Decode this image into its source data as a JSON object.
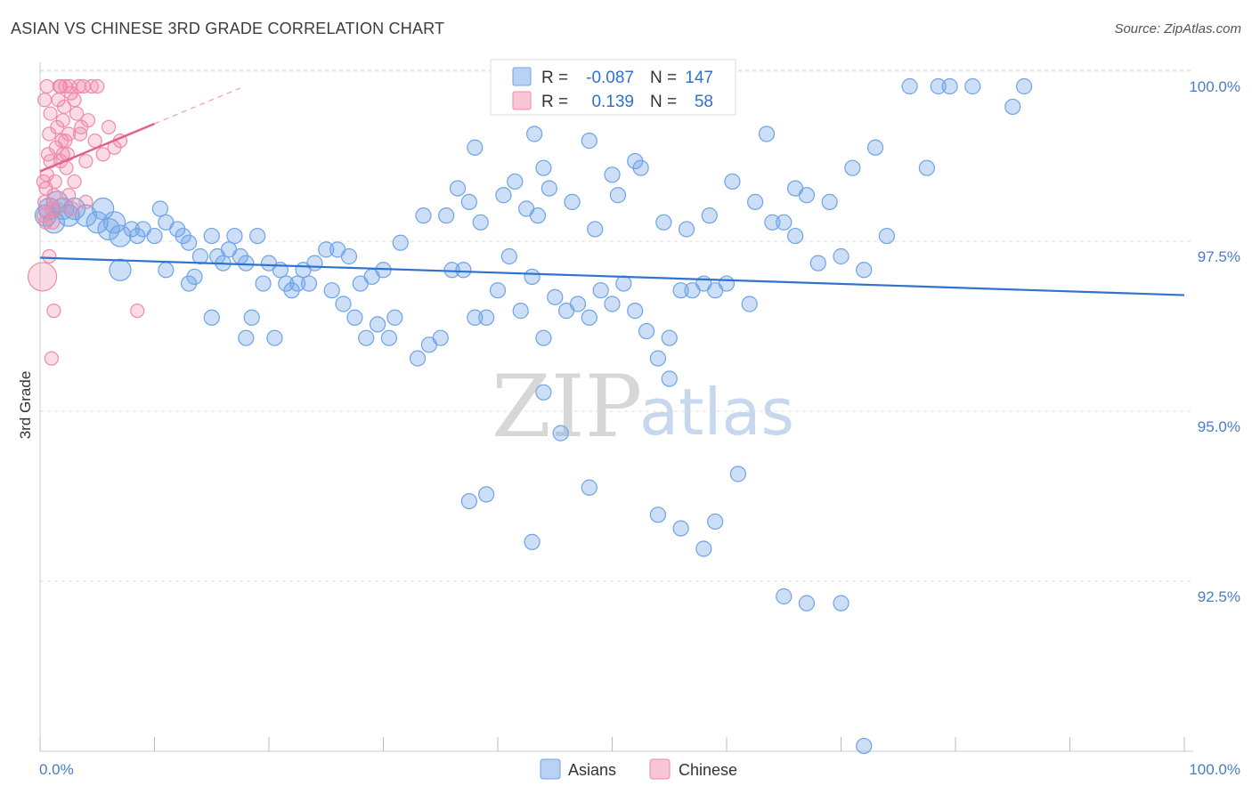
{
  "header": {
    "title": "ASIAN VS CHINESE 3RD GRADE CORRELATION CHART",
    "source": "Source: ZipAtlas.com"
  },
  "watermark": {
    "part1": "ZIP",
    "part2": "atlas"
  },
  "stats_legend": {
    "rows": [
      {
        "r_label": "R =",
        "r_value": "-0.087",
        "n_label": "N =",
        "n_value": "147",
        "color": "#6ea3e8"
      },
      {
        "r_label": "R =",
        "r_value": "0.139",
        "n_label": "N =",
        "n_value": "58",
        "color": "#f08aa8"
      }
    ]
  },
  "chart_data": {
    "type": "scatter",
    "title": "ASIAN VS CHINESE 3RD GRADE CORRELATION CHART",
    "xlabel": "",
    "ylabel": "3rd Grade",
    "xlim": [
      0,
      100
    ],
    "ylim": [
      90.0,
      100.4
    ],
    "x_tick_labels": [
      {
        "value": 0,
        "label": "0.0%"
      },
      {
        "value": 100,
        "label": "100.0%"
      }
    ],
    "y_tick_labels": [
      {
        "value": 100.0,
        "label": "100.0%"
      },
      {
        "value": 97.5,
        "label": "97.5%"
      },
      {
        "value": 95.0,
        "label": "95.0%"
      },
      {
        "value": 92.5,
        "label": "92.5%"
      }
    ],
    "grid": true,
    "legend_position": "bottom-center",
    "series": [
      {
        "name": "Asians",
        "color": "#6ea3e8",
        "trend": {
          "x": [
            0,
            100
          ],
          "y": [
            97.48,
            96.93
          ]
        },
        "points": [
          [
            0.5,
            98.1
          ],
          [
            0.8,
            98.2
          ],
          [
            1.2,
            98.0
          ],
          [
            1.5,
            98.3
          ],
          [
            2.0,
            98.2
          ],
          [
            2.5,
            98.1
          ],
          [
            3.0,
            98.2
          ],
          [
            4.0,
            98.1
          ],
          [
            5.0,
            98.0
          ],
          [
            5.5,
            98.2
          ],
          [
            6.0,
            97.9
          ],
          [
            6.5,
            98.0
          ],
          [
            7.0,
            97.8
          ],
          [
            8.0,
            97.9
          ],
          [
            8.5,
            97.8
          ],
          [
            9.0,
            97.9
          ],
          [
            10.0,
            97.8
          ],
          [
            10.5,
            98.2
          ],
          [
            11.0,
            98.0
          ],
          [
            12.0,
            97.9
          ],
          [
            7.0,
            97.3
          ],
          [
            11.0,
            97.3
          ],
          [
            12.5,
            97.8
          ],
          [
            13.0,
            97.7
          ],
          [
            13.0,
            97.1
          ],
          [
            13.5,
            97.2
          ],
          [
            14.0,
            97.5
          ],
          [
            15.0,
            97.8
          ],
          [
            15.5,
            97.5
          ],
          [
            16.0,
            97.4
          ],
          [
            16.5,
            97.6
          ],
          [
            17.0,
            97.8
          ],
          [
            17.5,
            97.5
          ],
          [
            18.0,
            97.4
          ],
          [
            19.0,
            97.8
          ],
          [
            19.5,
            97.1
          ],
          [
            20.0,
            97.4
          ],
          [
            21.0,
            97.3
          ],
          [
            21.5,
            97.1
          ],
          [
            22.0,
            97.0
          ],
          [
            23.0,
            97.3
          ],
          [
            24.0,
            97.4
          ],
          [
            25.0,
            97.6
          ],
          [
            26.0,
            97.6
          ],
          [
            27.0,
            97.5
          ],
          [
            28.0,
            97.1
          ],
          [
            29.0,
            97.2
          ],
          [
            30.0,
            97.3
          ],
          [
            15.0,
            96.6
          ],
          [
            18.0,
            96.3
          ],
          [
            18.5,
            96.6
          ],
          [
            20.5,
            96.3
          ],
          [
            22.5,
            97.1
          ],
          [
            23.5,
            97.1
          ],
          [
            25.5,
            97.0
          ],
          [
            26.5,
            96.8
          ],
          [
            27.5,
            96.6
          ],
          [
            28.5,
            96.3
          ],
          [
            29.5,
            96.5
          ],
          [
            30.5,
            96.3
          ],
          [
            31.0,
            96.6
          ],
          [
            33.0,
            96.0
          ],
          [
            34.0,
            96.2
          ],
          [
            35.0,
            96.3
          ],
          [
            36.0,
            97.3
          ],
          [
            37.0,
            97.3
          ],
          [
            38.0,
            96.6
          ],
          [
            39.0,
            96.6
          ],
          [
            40.0,
            97.0
          ],
          [
            41.0,
            97.5
          ],
          [
            42.0,
            96.7
          ],
          [
            43.0,
            97.2
          ],
          [
            44.0,
            96.3
          ],
          [
            45.0,
            96.9
          ],
          [
            46.0,
            96.7
          ],
          [
            47.0,
            96.8
          ],
          [
            48.0,
            96.6
          ],
          [
            49.0,
            97.0
          ],
          [
            50.0,
            96.8
          ],
          [
            51.0,
            97.1
          ],
          [
            52.0,
            96.7
          ],
          [
            53.0,
            96.4
          ],
          [
            54.0,
            96.0
          ],
          [
            55.0,
            96.3
          ],
          [
            56.0,
            97.0
          ],
          [
            57.0,
            97.0
          ],
          [
            58.0,
            97.1
          ],
          [
            59.0,
            97.0
          ],
          [
            60.0,
            97.1
          ],
          [
            62.0,
            96.8
          ],
          [
            64.0,
            98.0
          ],
          [
            66.0,
            97.8
          ],
          [
            68.0,
            97.4
          ],
          [
            70.0,
            97.5
          ],
          [
            72.0,
            97.3
          ],
          [
            74.0,
            97.8
          ],
          [
            31.5,
            97.7
          ],
          [
            33.5,
            98.1
          ],
          [
            35.5,
            98.1
          ],
          [
            37.5,
            98.3
          ],
          [
            38.5,
            98.0
          ],
          [
            40.5,
            98.4
          ],
          [
            42.5,
            98.2
          ],
          [
            43.5,
            98.1
          ],
          [
            44.5,
            98.5
          ],
          [
            46.5,
            98.3
          ],
          [
            48.5,
            97.9
          ],
          [
            50.5,
            98.4
          ],
          [
            52.5,
            98.8
          ],
          [
            54.5,
            98.0
          ],
          [
            56.5,
            97.9
          ],
          [
            58.5,
            98.1
          ],
          [
            60.5,
            98.6
          ],
          [
            62.5,
            98.3
          ],
          [
            63.5,
            99.3
          ],
          [
            65.0,
            98.0
          ],
          [
            67.0,
            98.4
          ],
          [
            69.0,
            98.3
          ],
          [
            71.0,
            98.8
          ],
          [
            73.0,
            99.1
          ],
          [
            36.5,
            98.5
          ],
          [
            38.0,
            99.1
          ],
          [
            41.5,
            98.6
          ],
          [
            43.2,
            99.3
          ],
          [
            44.0,
            98.8
          ],
          [
            48.0,
            99.2
          ],
          [
            50.0,
            98.7
          ],
          [
            52.0,
            98.9
          ],
          [
            55.0,
            95.7
          ],
          [
            44.0,
            95.5
          ],
          [
            45.5,
            94.9
          ],
          [
            37.5,
            93.9
          ],
          [
            39.0,
            94.0
          ],
          [
            43.0,
            93.3
          ],
          [
            48.0,
            94.1
          ],
          [
            54.0,
            93.7
          ],
          [
            56.0,
            93.5
          ],
          [
            58.0,
            93.2
          ],
          [
            59.0,
            93.6
          ],
          [
            61.0,
            94.3
          ],
          [
            65.0,
            92.5
          ],
          [
            67.0,
            92.4
          ],
          [
            70.0,
            92.4
          ],
          [
            72.0,
            90.3
          ],
          [
            76.0,
            100.0
          ],
          [
            78.5,
            100.0
          ],
          [
            79.5,
            100.0
          ],
          [
            81.5,
            100.0
          ],
          [
            86.0,
            100.0
          ],
          [
            85.0,
            99.7
          ],
          [
            77.5,
            98.8
          ],
          [
            66.0,
            98.5
          ]
        ]
      },
      {
        "name": "Chinese",
        "color": "#f08aa8",
        "trend": {
          "x": [
            0,
            10
          ],
          "y": [
            98.75,
            99.45
          ]
        },
        "points": [
          [
            0.2,
            97.2
          ],
          [
            0.3,
            98.1
          ],
          [
            0.4,
            98.3
          ],
          [
            0.5,
            98.5
          ],
          [
            0.6,
            98.7
          ],
          [
            0.7,
            99.0
          ],
          [
            0.8,
            99.3
          ],
          [
            0.9,
            99.6
          ],
          [
            1.0,
            98.2
          ],
          [
            1.1,
            98.0
          ],
          [
            1.2,
            98.4
          ],
          [
            1.3,
            98.6
          ],
          [
            1.4,
            99.1
          ],
          [
            1.5,
            99.4
          ],
          [
            1.6,
            99.8
          ],
          [
            1.7,
            100.0
          ],
          [
            1.8,
            98.9
          ],
          [
            1.9,
            99.2
          ],
          [
            2.0,
            99.5
          ],
          [
            2.1,
            99.7
          ],
          [
            2.2,
            100.0
          ],
          [
            2.3,
            98.8
          ],
          [
            2.4,
            99.0
          ],
          [
            2.5,
            99.3
          ],
          [
            2.6,
            100.0
          ],
          [
            2.7,
            99.9
          ],
          [
            2.8,
            98.2
          ],
          [
            3.0,
            98.6
          ],
          [
            3.2,
            99.6
          ],
          [
            3.4,
            100.0
          ],
          [
            3.6,
            99.4
          ],
          [
            3.8,
            100.0
          ],
          [
            4.0,
            98.3
          ],
          [
            4.2,
            99.5
          ],
          [
            4.5,
            100.0
          ],
          [
            4.8,
            99.2
          ],
          [
            5.0,
            100.0
          ],
          [
            6.0,
            99.4
          ],
          [
            6.5,
            99.1
          ],
          [
            7.0,
            99.2
          ],
          [
            0.5,
            98.0
          ],
          [
            0.8,
            97.5
          ],
          [
            1.0,
            96.0
          ],
          [
            1.2,
            96.7
          ],
          [
            8.5,
            96.7
          ],
          [
            0.4,
            99.8
          ],
          [
            0.6,
            100.0
          ],
          [
            0.9,
            98.9
          ],
          [
            1.5,
            98.2
          ],
          [
            2.0,
            99.0
          ],
          [
            2.5,
            98.4
          ],
          [
            3.0,
            99.8
          ],
          [
            3.5,
            99.3
          ],
          [
            4.0,
            98.9
          ],
          [
            5.5,
            99.0
          ],
          [
            1.8,
            100.0
          ],
          [
            2.2,
            99.2
          ],
          [
            0.3,
            98.6
          ]
        ]
      }
    ]
  }
}
